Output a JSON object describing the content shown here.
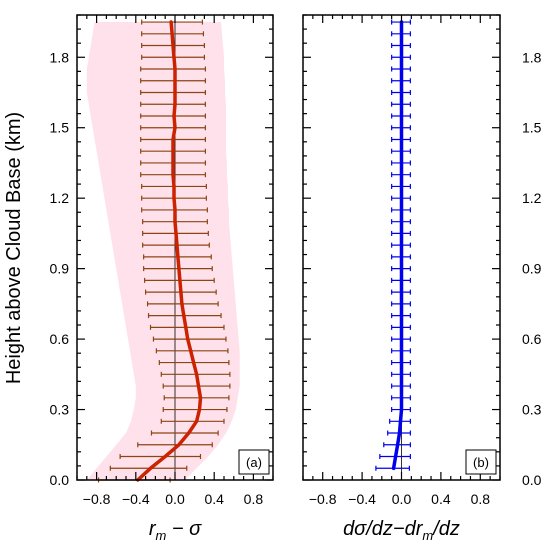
{
  "figure": {
    "y_axis_label": "Height above Cloud Base (km)"
  },
  "chart_data": [
    {
      "type": "line",
      "panel_label": "(a)",
      "xlabel": "r_m − σ",
      "ylabel": "Height above Cloud Base (km)",
      "xlim": [
        -1.0,
        1.0
      ],
      "ylim": [
        0.0,
        1.98
      ],
      "xticks": [
        "−0.8",
        "−0.4",
        "0.0",
        "0.4",
        "0.8"
      ],
      "yticks": [
        "0.0",
        "0.3",
        "0.6",
        "0.9",
        "1.2",
        "1.5",
        "1.8"
      ],
      "colors": {
        "line": "#cc2200",
        "errorbar": "#8b4513",
        "spread": "#ffc8dc"
      },
      "series": [
        {
          "y": [
            0.0,
            0.05,
            0.1,
            0.15,
            0.2,
            0.25,
            0.3,
            0.35,
            0.4,
            0.45,
            0.5,
            0.55,
            0.6,
            0.65,
            0.7,
            0.75,
            0.8,
            0.85,
            0.9,
            0.95,
            1.0,
            1.05,
            1.1,
            1.15,
            1.2,
            1.25,
            1.3,
            1.35,
            1.4,
            1.45,
            1.5,
            1.55,
            1.6,
            1.65,
            1.7,
            1.75,
            1.8,
            1.85,
            1.9,
            1.95
          ],
          "mean": [
            -0.38,
            -0.25,
            -0.1,
            0.04,
            0.14,
            0.22,
            0.25,
            0.26,
            0.24,
            0.22,
            0.19,
            0.16,
            0.13,
            0.11,
            0.09,
            0.07,
            0.06,
            0.05,
            0.04,
            0.03,
            0.02,
            0.01,
            0.0,
            0.0,
            -0.01,
            -0.01,
            -0.02,
            -0.02,
            -0.02,
            -0.02,
            0.0,
            -0.01,
            0.0,
            0.0,
            0.0,
            0.0,
            -0.01,
            -0.02,
            -0.03,
            -0.04
          ],
          "err_low": [
            -0.78,
            -0.66,
            -0.56,
            -0.38,
            -0.24,
            -0.14,
            -0.12,
            -0.11,
            -0.12,
            -0.14,
            -0.16,
            -0.19,
            -0.22,
            -0.25,
            -0.27,
            -0.28,
            -0.3,
            -0.31,
            -0.32,
            -0.32,
            -0.33,
            -0.33,
            -0.33,
            -0.34,
            -0.34,
            -0.34,
            -0.35,
            -0.35,
            -0.35,
            -0.35,
            -0.35,
            -0.35,
            -0.35,
            -0.35,
            -0.35,
            -0.35,
            -0.34,
            -0.34,
            -0.34,
            -0.34
          ],
          "err_high": [
            -0.05,
            0.12,
            0.26,
            0.38,
            0.44,
            0.5,
            0.53,
            0.55,
            0.56,
            0.56,
            0.55,
            0.54,
            0.52,
            0.5,
            0.47,
            0.44,
            0.42,
            0.4,
            0.38,
            0.37,
            0.35,
            0.34,
            0.33,
            0.33,
            0.32,
            0.32,
            0.31,
            0.31,
            0.31,
            0.31,
            0.31,
            0.31,
            0.31,
            0.31,
            0.31,
            0.31,
            0.3,
            0.3,
            0.29,
            0.28
          ],
          "spread_low": [
            -0.9,
            -0.8,
            -0.7,
            -0.6,
            -0.5,
            -0.45,
            -0.42,
            -0.4,
            -0.4,
            -0.42,
            -0.44,
            -0.46,
            -0.48,
            -0.5,
            -0.52,
            -0.54,
            -0.56,
            -0.58,
            -0.6,
            -0.62,
            -0.64,
            -0.66,
            -0.68,
            -0.7,
            -0.72,
            -0.74,
            -0.76,
            -0.78,
            -0.8,
            -0.82,
            -0.84,
            -0.86,
            -0.88,
            -0.9,
            -0.9,
            -0.9,
            -0.88,
            -0.86,
            -0.84,
            -0.82
          ],
          "spread_high": [
            0.1,
            0.22,
            0.34,
            0.44,
            0.52,
            0.58,
            0.62,
            0.64,
            0.66,
            0.66,
            0.66,
            0.66,
            0.65,
            0.64,
            0.63,
            0.62,
            0.61,
            0.6,
            0.59,
            0.58,
            0.57,
            0.56,
            0.55,
            0.55,
            0.54,
            0.54,
            0.53,
            0.53,
            0.52,
            0.52,
            0.52,
            0.52,
            0.52,
            0.51,
            0.51,
            0.5,
            0.5,
            0.49,
            0.48,
            0.47
          ]
        }
      ]
    },
    {
      "type": "line",
      "panel_label": "(b)",
      "xlabel": "dσ/dz−dr_m/dz",
      "ylabel": "Height above Cloud Base (km)",
      "xlim": [
        -1.0,
        1.0
      ],
      "ylim": [
        0.0,
        1.98
      ],
      "xticks": [
        "−0.8",
        "−0.4",
        "0.0",
        "0.4",
        "0.8"
      ],
      "yticks": [
        "0.0",
        "0.3",
        "0.6",
        "0.9",
        "1.2",
        "1.5",
        "1.8"
      ],
      "colors": {
        "line": "#0000ee",
        "errorbar": "#0000ee"
      },
      "series": [
        {
          "y": [
            0.05,
            0.1,
            0.15,
            0.2,
            0.25,
            0.3,
            0.35,
            0.4,
            0.45,
            0.5,
            0.55,
            0.6,
            0.65,
            0.7,
            0.75,
            0.8,
            0.85,
            0.9,
            0.95,
            1.0,
            1.05,
            1.1,
            1.15,
            1.2,
            1.25,
            1.3,
            1.35,
            1.4,
            1.45,
            1.5,
            1.55,
            1.6,
            1.65,
            1.7,
            1.75,
            1.8,
            1.85,
            1.9,
            1.95
          ],
          "mean": [
            -0.08,
            -0.06,
            -0.04,
            -0.02,
            -0.01,
            0.0,
            0.0,
            0.0,
            0.0,
            0.0,
            0.0,
            0.0,
            0.0,
            0.0,
            0.0,
            0.0,
            0.0,
            0.0,
            0.0,
            0.0,
            0.0,
            0.0,
            0.0,
            0.0,
            0.0,
            0.0,
            0.0,
            0.0,
            0.0,
            0.0,
            0.0,
            0.0,
            0.0,
            0.0,
            0.0,
            0.0,
            0.0,
            0.0,
            0.0
          ],
          "err_low": [
            -0.26,
            -0.22,
            -0.18,
            -0.14,
            -0.12,
            -0.1,
            -0.1,
            -0.1,
            -0.1,
            -0.1,
            -0.1,
            -0.1,
            -0.1,
            -0.1,
            -0.1,
            -0.1,
            -0.1,
            -0.1,
            -0.1,
            -0.1,
            -0.1,
            -0.1,
            -0.1,
            -0.1,
            -0.1,
            -0.1,
            -0.1,
            -0.1,
            -0.1,
            -0.1,
            -0.1,
            -0.1,
            -0.1,
            -0.1,
            -0.1,
            -0.1,
            -0.1,
            -0.1,
            -0.1
          ],
          "err_high": [
            0.08,
            0.09,
            0.09,
            0.09,
            0.09,
            0.09,
            0.09,
            0.09,
            0.09,
            0.09,
            0.09,
            0.09,
            0.09,
            0.09,
            0.09,
            0.09,
            0.09,
            0.09,
            0.09,
            0.09,
            0.09,
            0.09,
            0.09,
            0.09,
            0.09,
            0.09,
            0.09,
            0.09,
            0.09,
            0.09,
            0.09,
            0.09,
            0.09,
            0.09,
            0.09,
            0.09,
            0.09,
            0.09,
            0.09
          ]
        }
      ]
    }
  ]
}
